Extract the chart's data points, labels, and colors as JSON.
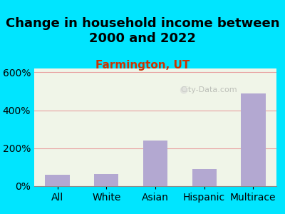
{
  "title": "Change in household income between\n2000 and 2022",
  "subtitle": "Farmington, UT",
  "categories": [
    "All",
    "White",
    "Asian",
    "Hispanic",
    "Multirace"
  ],
  "values": [
    60,
    65,
    240,
    90,
    490
  ],
  "bar_color": "#b3a8d1",
  "title_fontsize": 13,
  "subtitle_fontsize": 11,
  "subtitle_color": "#cc3300",
  "tick_label_fontsize": 10,
  "yticks": [
    0,
    200,
    400,
    600
  ],
  "ylim": [
    0,
    620
  ],
  "background_outer": "#00e5ff",
  "background_plot_top": "#f0f5e8",
  "background_plot_bottom": "#e8f5e0",
  "grid_color": "#e8a0a0",
  "watermark": "City-Data.com"
}
